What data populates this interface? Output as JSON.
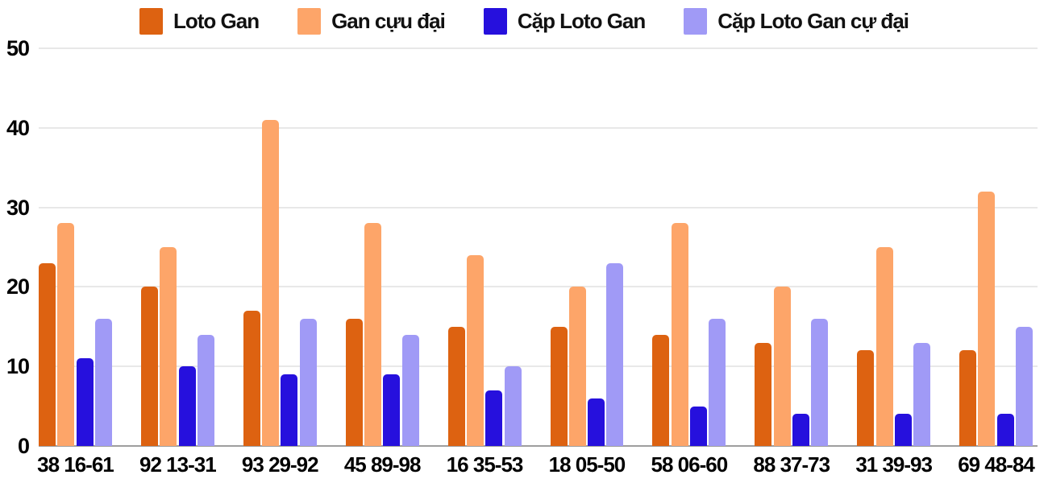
{
  "chart_data": {
    "type": "bar",
    "title": "",
    "xlabel": "",
    "ylabel": "",
    "categories": [
      "38 16-61",
      "92 13-31",
      "93 29-92",
      "45 89-98",
      "16 35-53",
      "18 05-50",
      "58 06-60",
      "88 37-73",
      "31 39-93",
      "69 48-84"
    ],
    "series": [
      {
        "name": "Loto Gan",
        "color": "#dd6211",
        "values": [
          23,
          20,
          17,
          16,
          15,
          15,
          14,
          13,
          12,
          12
        ]
      },
      {
        "name": "Gan cựu đại",
        "color": "#fda569",
        "values": [
          28,
          25,
          41,
          28,
          24,
          20,
          28,
          20,
          25,
          32
        ]
      },
      {
        "name": "Cặp Loto Gan",
        "color": "#2610dd",
        "values": [
          11,
          10,
          9,
          9,
          7,
          6,
          5,
          4,
          4,
          4
        ]
      },
      {
        "name": "Cặp Loto Gan cự đại",
        "color": "#a09af6",
        "values": [
          16,
          14,
          16,
          14,
          10,
          23,
          16,
          16,
          13,
          15
        ]
      }
    ],
    "y_ticks": [
      "0",
      "10",
      "20",
      "30",
      "40",
      "50"
    ],
    "y_tick_values": [
      0,
      10,
      20,
      30,
      40,
      50
    ],
    "ylim": [
      0,
      50
    ],
    "grid": true,
    "legend_position": "top",
    "colors": {
      "background": "#ffffff",
      "gridline": "#e8e8e8",
      "baseline": "#9e9e9e",
      "axis_text": "#000000",
      "legend_text": "#111111"
    }
  }
}
